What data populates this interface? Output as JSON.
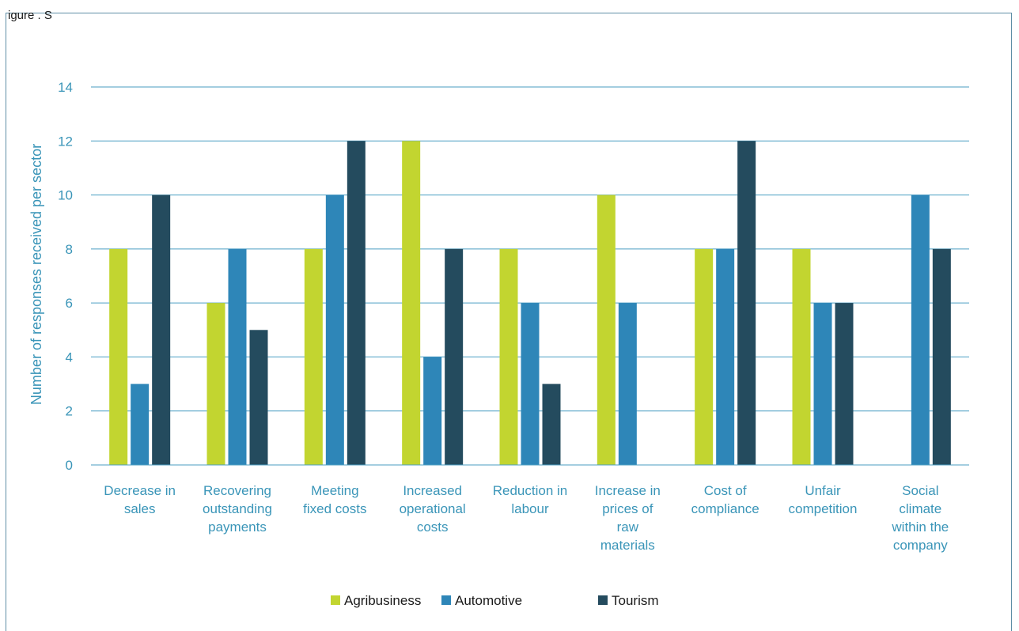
{
  "figure": {
    "caption": "igure  .  S"
  },
  "chart_data": {
    "type": "bar",
    "ylabel": "Number of responses received per sector",
    "xlabel": "",
    "ylim": [
      0,
      14
    ],
    "yticks": [
      0,
      2,
      4,
      6,
      8,
      10,
      12,
      14
    ],
    "grid": true,
    "legend_position": "bottom",
    "categories": [
      [
        "Decrease in",
        "sales"
      ],
      [
        "Recovering",
        "outstanding",
        "payments"
      ],
      [
        "Meeting",
        "fixed costs"
      ],
      [
        "Increased",
        "operational",
        "costs"
      ],
      [
        "Reduction in",
        "labour"
      ],
      [
        "Increase in",
        "prices of",
        "raw",
        "materials"
      ],
      [
        "Cost of",
        "compliance"
      ],
      [
        "Unfair",
        "competition"
      ],
      [
        "Social",
        "climate",
        "within the",
        "company"
      ]
    ],
    "series": [
      {
        "name": "Agribusiness",
        "color": "#c2d530",
        "values": [
          8,
          6,
          8,
          12,
          8,
          10,
          8,
          8,
          0
        ]
      },
      {
        "name": "Automotive",
        "color": "#2e86b8",
        "values": [
          3,
          8,
          10,
          4,
          6,
          6,
          8,
          6,
          10
        ]
      },
      {
        "name": "Tourism",
        "color": "#244b5e",
        "values": [
          10,
          5,
          12,
          8,
          3,
          0,
          12,
          6,
          8
        ]
      }
    ],
    "colors": {
      "text": "#3a95b8",
      "grid": "#4a9ec2",
      "frame": "#5f8ea6",
      "legend_text": "#1a1a1a"
    }
  }
}
